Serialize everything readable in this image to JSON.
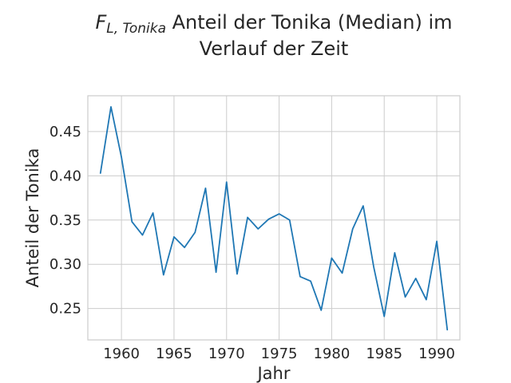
{
  "chart_data": {
    "type": "line",
    "title": {
      "symbol": "F",
      "subscript": "L, Tonika",
      "line1": " Anteil der Tonika (Median) im",
      "line2": "Verlauf der Zeit"
    },
    "xlabel": "Jahr",
    "ylabel": "Anteil der Tonika",
    "xlim": [
      1956.8,
      1992.2
    ],
    "ylim": [
      0.2145,
      0.4905
    ],
    "xticks": [
      1960,
      1965,
      1970,
      1975,
      1980,
      1985,
      1990
    ],
    "yticks": [
      0.25,
      0.3,
      0.35,
      0.4,
      0.45
    ],
    "ytick_labels": [
      "0.25",
      "0.30",
      "0.35",
      "0.40",
      "0.45"
    ],
    "grid": true,
    "series": [
      {
        "color": "#1f77b4",
        "x": [
          1958,
          1959,
          1960,
          1961,
          1962,
          1963,
          1964,
          1965,
          1966,
          1967,
          1968,
          1969,
          1970,
          1971,
          1972,
          1973,
          1974,
          1975,
          1976,
          1977,
          1978,
          1979,
          1980,
          1981,
          1982,
          1983,
          1984,
          1985,
          1986,
          1987,
          1988,
          1989,
          1990,
          1991
        ],
        "y": [
          0.403,
          0.478,
          0.421,
          0.348,
          0.333,
          0.358,
          0.288,
          0.331,
          0.319,
          0.336,
          0.386,
          0.291,
          0.393,
          0.289,
          0.353,
          0.34,
          0.351,
          0.357,
          0.35,
          0.286,
          0.281,
          0.248,
          0.307,
          0.29,
          0.34,
          0.366,
          0.297,
          0.241,
          0.313,
          0.263,
          0.284,
          0.26,
          0.326,
          0.226
        ]
      }
    ]
  }
}
